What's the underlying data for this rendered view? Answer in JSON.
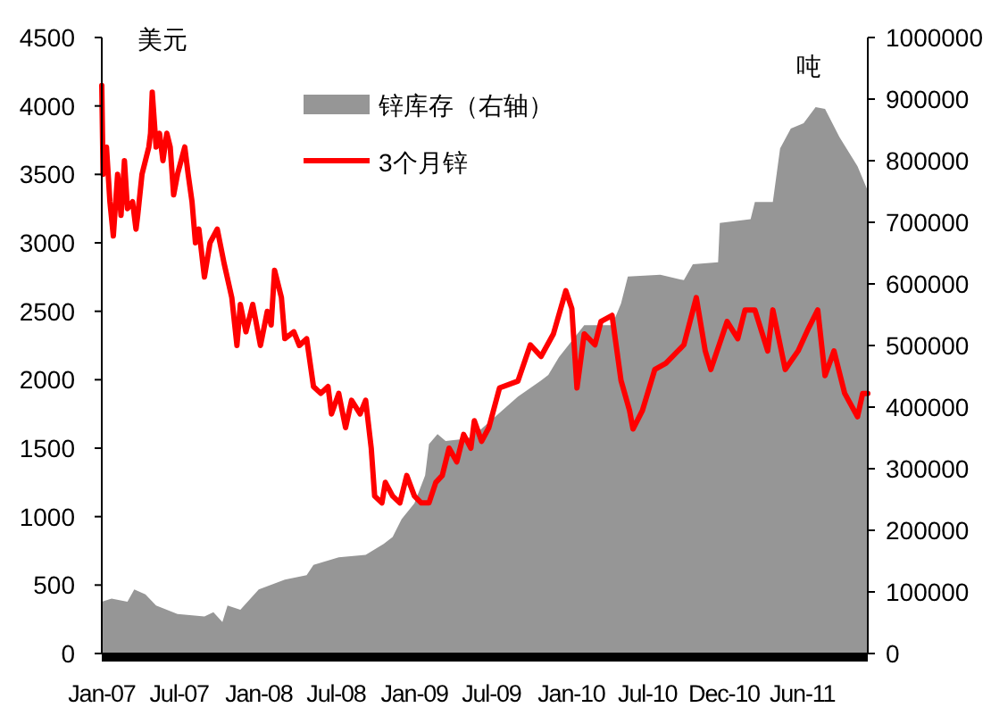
{
  "chart_data": {
    "type": "line",
    "ylabel": "美元",
    "y2label": "吨",
    "legend": "top",
    "xlim": [
      "2007-01-02",
      "2011-11-28"
    ],
    "xticks": [
      {
        "value": "2007-01-02",
        "label": "Jan-07"
      },
      {
        "value": "2007-07-02",
        "label": "Jul-07"
      },
      {
        "value": "2008-01-04",
        "label": "Jan-08"
      },
      {
        "value": "2008-07-03",
        "label": "Jul-08"
      },
      {
        "value": "2009-01-02",
        "label": "Jan-09"
      },
      {
        "value": "2009-07-01",
        "label": "Jul-09"
      },
      {
        "value": "2010-01-04",
        "label": "Jan-10"
      },
      {
        "value": "2010-07-01",
        "label": "Jul-10"
      },
      {
        "value": "2010-12-27",
        "label": "Dec-10"
      },
      {
        "value": "2011-06-28",
        "label": "Jun-11"
      }
    ],
    "ylim": [
      0,
      4500
    ],
    "yticks": [
      0,
      500,
      1000,
      1500,
      2000,
      2500,
      3000,
      3500,
      4000,
      4500
    ],
    "y2lim": [
      0,
      1000000
    ],
    "y2ticks": [
      0,
      100000,
      200000,
      300000,
      400000,
      500000,
      600000,
      700000,
      800000,
      900000,
      1000000
    ],
    "series": [
      {
        "name": "锌库存（右轴）",
        "type": "area",
        "axis": "y2",
        "color": "#969696",
        "x": [
          "2007-01-02",
          "2007-01-25",
          "2007-03-03",
          "2007-03-19",
          "2007-04-14",
          "2007-05-09",
          "2007-06-28",
          "2007-08-30",
          "2007-09-20",
          "2007-10-11",
          "2007-10-23",
          "2007-11-22",
          "2008-01-04",
          "2008-03-05",
          "2008-04-25",
          "2008-05-11",
          "2008-07-09",
          "2008-09-10",
          "2008-10-22",
          "2008-11-12",
          "2008-12-03",
          "2009-01-02",
          "2009-01-27",
          "2009-02-05",
          "2009-02-25",
          "2009-03-16",
          "2009-05-06",
          "2009-06-08",
          "2009-09-01",
          "2009-10-25",
          "2009-11-11",
          "2009-12-06",
          "2010-02-03",
          "2010-04-09",
          "2010-04-30",
          "2010-05-16",
          "2010-07-31",
          "2010-09-24",
          "2010-10-15",
          "2010-12-13",
          "2010-12-17",
          "2011-02-27",
          "2011-03-09",
          "2011-04-20",
          "2011-05-07",
          "2011-06-01",
          "2011-07-01",
          "2011-07-29",
          "2011-08-20",
          "2011-09-23",
          "2011-11-04",
          "2011-11-28"
        ],
        "values": [
          84000,
          89000,
          84000,
          104000,
          96000,
          78000,
          64000,
          60000,
          67000,
          51000,
          78000,
          71000,
          104000,
          120000,
          127000,
          144000,
          156000,
          160000,
          178000,
          189000,
          218000,
          244000,
          289000,
          340000,
          356000,
          345000,
          349000,
          365000,
          417000,
          443000,
          452000,
          481000,
          533000,
          533000,
          568000,
          612000,
          615000,
          606000,
          632000,
          635000,
          699000,
          705000,
          733000,
          733000,
          820000,
          852000,
          861000,
          887000,
          884000,
          838000,
          791000,
          751000
        ]
      },
      {
        "name": "3个月锌",
        "color": "#ff0000",
        "x": [
          "2007-01-02",
          "2007-01-05",
          "2007-01-13",
          "2007-01-21",
          "2007-01-29",
          "2007-02-08",
          "2007-02-16",
          "2007-02-24",
          "2007-03-03",
          "2007-03-15",
          "2007-03-23",
          "2007-03-27",
          "2007-04-06",
          "2007-04-14",
          "2007-04-22",
          "2007-04-26",
          "2007-04-30",
          "2007-05-09",
          "2007-05-17",
          "2007-05-25",
          "2007-06-03",
          "2007-06-11",
          "2007-06-19",
          "2007-06-28",
          "2007-07-15",
          "2007-07-23",
          "2007-08-01",
          "2007-08-09",
          "2007-08-17",
          "2007-08-30",
          "2007-09-12",
          "2007-09-29",
          "2007-10-15",
          "2007-11-02",
          "2007-11-14",
          "2007-11-22",
          "2007-12-05",
          "2007-12-21",
          "2008-01-08",
          "2008-01-24",
          "2008-02-02",
          "2008-02-10",
          "2008-02-26",
          "2008-03-05",
          "2008-03-26",
          "2008-04-08",
          "2008-04-25",
          "2008-05-11",
          "2008-05-28",
          "2008-06-14",
          "2008-06-22",
          "2008-07-09",
          "2008-07-25",
          "2008-08-08",
          "2008-08-28",
          "2008-09-10",
          "2008-09-23",
          "2008-10-01",
          "2008-10-18",
          "2008-10-26",
          "2008-11-12",
          "2008-11-29",
          "2008-12-15",
          "2009-01-02",
          "2009-01-18",
          "2009-02-05",
          "2009-02-21",
          "2009-03-08",
          "2009-03-24",
          "2009-04-11",
          "2009-04-27",
          "2009-05-14",
          "2009-05-22",
          "2009-06-08",
          "2009-06-25",
          "2009-07-20",
          "2009-09-01",
          "2009-09-30",
          "2009-10-25",
          "2009-11-23",
          "2009-12-22",
          "2010-01-05",
          "2010-01-17",
          "2010-02-03",
          "2010-02-28",
          "2010-03-14",
          "2010-04-09",
          "2010-04-30",
          "2010-05-20",
          "2010-05-28",
          "2010-06-19",
          "2010-07-18",
          "2010-08-13",
          "2010-09-24",
          "2010-10-23",
          "2010-11-13",
          "2010-11-26",
          "2011-01-03",
          "2011-01-28",
          "2011-02-14",
          "2011-03-09",
          "2011-04-08",
          "2011-04-20",
          "2011-05-19",
          "2011-06-18",
          "2011-07-13",
          "2011-08-03",
          "2011-08-20",
          "2011-09-10",
          "2011-10-05",
          "2011-11-04",
          "2011-11-16",
          "2011-11-28"
        ],
        "values": [
          4150,
          3500,
          3700,
          3300,
          3050,
          3500,
          3200,
          3600,
          3250,
          3300,
          3100,
          3200,
          3500,
          3600,
          3700,
          3800,
          4100,
          3700,
          3800,
          3600,
          3800,
          3700,
          3350,
          3500,
          3700,
          3500,
          3300,
          3000,
          3100,
          2750,
          3000,
          3100,
          2850,
          2600,
          2250,
          2550,
          2350,
          2550,
          2250,
          2500,
          2400,
          2800,
          2600,
          2300,
          2350,
          2250,
          2300,
          1950,
          1900,
          1950,
          1750,
          1900,
          1650,
          1850,
          1750,
          1850,
          1500,
          1150,
          1100,
          1250,
          1150,
          1100,
          1300,
          1150,
          1100,
          1100,
          1250,
          1300,
          1500,
          1400,
          1600,
          1500,
          1700,
          1550,
          1650,
          1940,
          1990,
          2255,
          2170,
          2335,
          2650,
          2520,
          1940,
          2335,
          2255,
          2425,
          2470,
          1995,
          1775,
          1640,
          1775,
          2075,
          2120,
          2255,
          2600,
          2210,
          2075,
          2425,
          2300,
          2510,
          2510,
          2210,
          2510,
          2075,
          2210,
          2380,
          2510,
          2030,
          2210,
          1900,
          1730,
          1900,
          1900
        ]
      }
    ]
  }
}
